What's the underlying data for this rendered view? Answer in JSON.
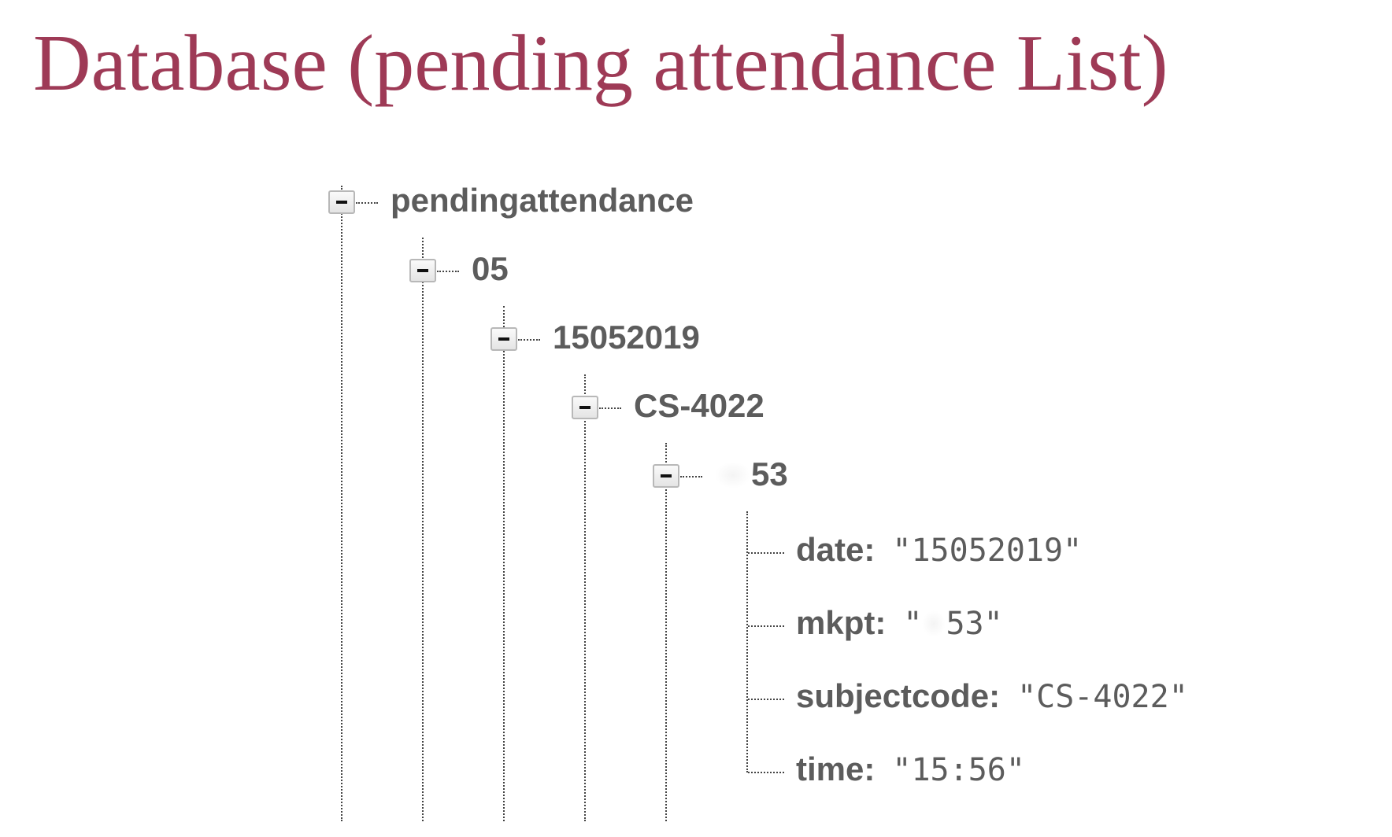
{
  "title": "Database (pending attendance List)",
  "tree": {
    "root": "pendingattendance",
    "level1": "05",
    "level2": "15052019",
    "level3": "CS-4022",
    "level4_visible_suffix": "53",
    "fields": [
      {
        "key": "date:",
        "value": "\"15052019\""
      },
      {
        "key": "mkpt:",
        "value_prefix": "\"",
        "value_suffix": "53\""
      },
      {
        "key": "subjectcode:",
        "value": "\"CS-4022\""
      },
      {
        "key": "time:",
        "value": "\"15:56\""
      }
    ]
  },
  "colors": {
    "title": "#9e3a56",
    "tree_text": "#5c5c5c",
    "connector": "#444444"
  },
  "icons": [
    "collapse-icon"
  ]
}
